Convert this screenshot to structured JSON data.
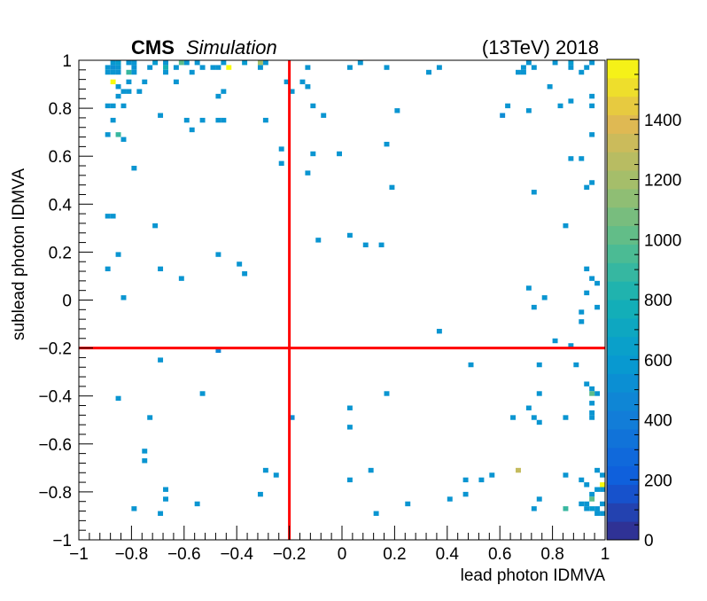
{
  "header": {
    "experiment": "CMS",
    "qualifier": "Simulation",
    "energy_year": "(13TeV) 2018"
  },
  "chart_data": {
    "type": "heatmap",
    "title": "",
    "xlabel": "lead photon IDMVA",
    "ylabel": "sublead photon IDMVA",
    "xlim": [
      -1,
      1
    ],
    "ylim": [
      -1,
      1
    ],
    "x_ticks": [
      "−1",
      "−0.8",
      "−0.6",
      "−0.4",
      "−0.2",
      "0",
      "0.2",
      "0.4",
      "0.6",
      "0.8",
      "1"
    ],
    "y_ticks": [
      "−1",
      "−0.8",
      "−0.6",
      "−0.4",
      "−0.2",
      "0",
      "0.2",
      "0.4",
      "0.6",
      "0.8",
      "1"
    ],
    "bins": [
      100,
      100
    ],
    "colorbar": {
      "min": 0,
      "max": 1600,
      "ticks": [
        "0",
        "200",
        "400",
        "600",
        "800",
        "1000",
        "1200",
        "1400"
      ]
    },
    "cut_lines": {
      "x": -0.2,
      "y": -0.2,
      "color": "#ff0000"
    },
    "cells": [
      [
        -0.87,
        0.99,
        580
      ],
      [
        -0.85,
        0.99,
        620
      ],
      [
        -0.81,
        0.99,
        560
      ],
      [
        -0.79,
        0.99,
        560
      ],
      [
        -0.71,
        0.99,
        600
      ],
      [
        -0.67,
        0.99,
        560
      ],
      [
        -0.61,
        0.99,
        1000
      ],
      [
        -0.59,
        0.99,
        560
      ],
      [
        -0.55,
        0.99,
        560
      ],
      [
        -0.45,
        0.99,
        560
      ],
      [
        -0.37,
        0.99,
        600
      ],
      [
        -0.31,
        0.99,
        1200
      ],
      [
        -0.29,
        0.99,
        560
      ],
      [
        0.07,
        0.99,
        560
      ],
      [
        0.71,
        0.99,
        560
      ],
      [
        0.81,
        0.99,
        560
      ],
      [
        0.87,
        0.99,
        600
      ],
      [
        0.95,
        0.99,
        560
      ],
      [
        -0.89,
        0.97,
        560
      ],
      [
        -0.87,
        0.97,
        520
      ],
      [
        -0.85,
        0.97,
        560
      ],
      [
        -0.79,
        0.97,
        540
      ],
      [
        -0.73,
        0.97,
        560
      ],
      [
        -0.67,
        0.97,
        800
      ],
      [
        -0.63,
        0.97,
        560
      ],
      [
        -0.53,
        0.97,
        560
      ],
      [
        -0.49,
        0.97,
        560
      ],
      [
        -0.47,
        0.97,
        560
      ],
      [
        -0.43,
        0.97,
        1600
      ],
      [
        -0.31,
        0.97,
        560
      ],
      [
        -0.13,
        0.97,
        560
      ],
      [
        0.03,
        0.97,
        560
      ],
      [
        0.17,
        0.97,
        560
      ],
      [
        0.37,
        0.97,
        560
      ],
      [
        0.69,
        0.97,
        560
      ],
      [
        0.73,
        0.97,
        560
      ],
      [
        0.87,
        0.97,
        560
      ],
      [
        0.93,
        0.97,
        560
      ],
      [
        -0.89,
        0.95,
        560
      ],
      [
        -0.87,
        0.95,
        560
      ],
      [
        -0.85,
        0.95,
        540
      ],
      [
        -0.81,
        0.95,
        900
      ],
      [
        -0.79,
        0.95,
        560
      ],
      [
        -0.67,
        0.95,
        560
      ],
      [
        -0.57,
        0.95,
        560
      ],
      [
        0.33,
        0.95,
        560
      ],
      [
        0.67,
        0.95,
        560
      ],
      [
        0.69,
        0.95,
        560
      ],
      [
        0.91,
        0.95,
        560
      ],
      [
        -0.87,
        0.91,
        1600
      ],
      [
        -0.81,
        0.91,
        560
      ],
      [
        -0.75,
        0.91,
        560
      ],
      [
        -0.63,
        0.91,
        560
      ],
      [
        -0.21,
        0.91,
        560
      ],
      [
        -0.15,
        0.91,
        560
      ],
      [
        -0.85,
        0.89,
        560
      ],
      [
        -0.83,
        0.87,
        560
      ],
      [
        -0.77,
        0.87,
        560
      ],
      [
        -0.19,
        0.87,
        560
      ],
      [
        -0.13,
        0.89,
        560
      ],
      [
        0.79,
        0.89,
        560
      ],
      [
        -0.85,
        0.85,
        560
      ],
      [
        -0.81,
        0.87,
        560
      ],
      [
        -0.47,
        0.85,
        560
      ],
      [
        -0.45,
        0.87,
        560
      ],
      [
        0.95,
        0.85,
        560
      ],
      [
        -0.89,
        0.81,
        560
      ],
      [
        -0.87,
        0.81,
        560
      ],
      [
        -0.83,
        0.81,
        560
      ],
      [
        -0.11,
        0.81,
        560
      ],
      [
        0.63,
        0.81,
        560
      ],
      [
        0.71,
        0.79,
        560
      ],
      [
        0.83,
        0.81,
        560
      ],
      [
        0.87,
        0.83,
        560
      ],
      [
        0.95,
        0.81,
        560
      ],
      [
        -0.69,
        0.77,
        560
      ],
      [
        -0.07,
        0.77,
        560
      ],
      [
        0.21,
        0.79,
        560
      ],
      [
        0.61,
        0.77,
        500
      ],
      [
        -0.87,
        0.75,
        560
      ],
      [
        -0.59,
        0.75,
        560
      ],
      [
        -0.53,
        0.75,
        560
      ],
      [
        -0.47,
        0.75,
        560
      ],
      [
        -0.45,
        0.75,
        560
      ],
      [
        -0.29,
        0.75,
        560
      ],
      [
        -0.57,
        0.71,
        560
      ],
      [
        -0.89,
        0.69,
        560
      ],
      [
        -0.85,
        0.69,
        900
      ],
      [
        -0.83,
        0.67,
        560
      ],
      [
        0.17,
        0.65,
        560
      ],
      [
        0.95,
        0.69,
        560
      ],
      [
        -0.23,
        0.63,
        560
      ],
      [
        -0.11,
        0.61,
        560
      ],
      [
        -0.01,
        0.61,
        560
      ],
      [
        0.87,
        0.59,
        560
      ],
      [
        0.91,
        0.59,
        560
      ],
      [
        -0.23,
        0.57,
        560
      ],
      [
        -0.79,
        0.55,
        560
      ],
      [
        -0.13,
        0.53,
        560
      ],
      [
        0.95,
        0.49,
        560
      ],
      [
        0.93,
        0.47,
        560
      ],
      [
        0.19,
        0.47,
        560
      ],
      [
        0.73,
        0.45,
        560
      ],
      [
        -0.89,
        0.35,
        560
      ],
      [
        -0.87,
        0.35,
        560
      ],
      [
        -0.71,
        0.31,
        560
      ],
      [
        0.03,
        0.27,
        560
      ],
      [
        0.85,
        0.31,
        560
      ],
      [
        -0.09,
        0.25,
        560
      ],
      [
        0.09,
        0.23,
        560
      ],
      [
        0.15,
        0.23,
        560
      ],
      [
        -0.85,
        0.19,
        560
      ],
      [
        -0.47,
        0.19,
        560
      ],
      [
        -0.39,
        0.15,
        560
      ],
      [
        -0.89,
        0.13,
        560
      ],
      [
        -0.69,
        0.13,
        560
      ],
      [
        -0.37,
        0.11,
        560
      ],
      [
        -0.61,
        0.09,
        560
      ],
      [
        0.93,
        0.13,
        560
      ],
      [
        0.95,
        0.09,
        560
      ],
      [
        0.97,
        0.07,
        560
      ],
      [
        0.71,
        0.05,
        560
      ],
      [
        0.93,
        0.03,
        560
      ],
      [
        -0.83,
        0.01,
        560
      ],
      [
        0.77,
        0.01,
        560
      ],
      [
        0.73,
        -0.03,
        560
      ],
      [
        0.91,
        -0.05,
        560
      ],
      [
        0.97,
        -0.03,
        560
      ],
      [
        0.91,
        -0.09,
        560
      ],
      [
        0.37,
        -0.13,
        560
      ],
      [
        0.81,
        -0.17,
        560
      ],
      [
        0.87,
        -0.19,
        560
      ],
      [
        -0.47,
        -0.21,
        460
      ],
      [
        -0.69,
        -0.25,
        560
      ],
      [
        0.49,
        -0.27,
        560
      ],
      [
        0.75,
        -0.27,
        560
      ],
      [
        0.89,
        -0.27,
        560
      ],
      [
        0.93,
        -0.35,
        560
      ],
      [
        0.95,
        -0.37,
        560
      ],
      [
        0.97,
        -0.39,
        560
      ],
      [
        -0.53,
        -0.39,
        560
      ],
      [
        0.17,
        -0.39,
        560
      ],
      [
        0.75,
        -0.39,
        560
      ],
      [
        0.95,
        -0.39,
        1000
      ],
      [
        -0.85,
        -0.41,
        560
      ],
      [
        0.03,
        -0.45,
        560
      ],
      [
        0.71,
        -0.45,
        560
      ],
      [
        0.95,
        -0.43,
        560
      ],
      [
        0.95,
        -0.47,
        560
      ],
      [
        -0.73,
        -0.49,
        560
      ],
      [
        -0.19,
        -0.49,
        500
      ],
      [
        0.65,
        -0.49,
        560
      ],
      [
        0.73,
        -0.49,
        560
      ],
      [
        0.85,
        -0.49,
        560
      ],
      [
        0.95,
        -0.49,
        560
      ],
      [
        0.03,
        -0.53,
        560
      ],
      [
        0.75,
        -0.51,
        560
      ],
      [
        -0.75,
        -0.63,
        560
      ],
      [
        -0.75,
        -0.67,
        560
      ],
      [
        -0.29,
        -0.71,
        560
      ],
      [
        -0.25,
        -0.73,
        560
      ],
      [
        0.11,
        -0.71,
        560
      ],
      [
        0.57,
        -0.73,
        560
      ],
      [
        0.67,
        -0.71,
        1300
      ],
      [
        0.85,
        -0.73,
        560
      ],
      [
        0.91,
        -0.75,
        560
      ],
      [
        0.97,
        -0.71,
        560
      ],
      [
        0.99,
        -0.73,
        560
      ],
      [
        0.03,
        -0.75,
        560
      ],
      [
        0.47,
        -0.75,
        560
      ],
      [
        0.53,
        -0.75,
        560
      ],
      [
        0.93,
        -0.77,
        560
      ],
      [
        0.99,
        -0.77,
        1600
      ],
      [
        -0.67,
        -0.79,
        560
      ],
      [
        -0.31,
        -0.81,
        560
      ],
      [
        0.47,
        -0.81,
        560
      ],
      [
        0.97,
        -0.79,
        560
      ],
      [
        0.99,
        -0.79,
        560
      ],
      [
        -0.67,
        -0.83,
        560
      ],
      [
        0.41,
        -0.83,
        560
      ],
      [
        0.75,
        -0.83,
        560
      ],
      [
        0.95,
        -0.81,
        560
      ],
      [
        -0.55,
        -0.85,
        560
      ],
      [
        0.25,
        -0.85,
        560
      ],
      [
        0.91,
        -0.85,
        560
      ],
      [
        0.93,
        -0.85,
        560
      ],
      [
        0.95,
        -0.83,
        1000
      ],
      [
        -0.79,
        -0.87,
        560
      ],
      [
        0.73,
        -0.87,
        560
      ],
      [
        0.85,
        -0.87,
        900
      ],
      [
        0.93,
        -0.87,
        560
      ],
      [
        0.95,
        -0.87,
        600
      ],
      [
        0.97,
        -0.87,
        560
      ],
      [
        0.99,
        -0.85,
        560
      ],
      [
        -0.69,
        -0.89,
        560
      ],
      [
        0.13,
        -0.89,
        560
      ],
      [
        0.97,
        -0.89,
        560
      ],
      [
        0.99,
        -0.89,
        560
      ]
    ]
  }
}
